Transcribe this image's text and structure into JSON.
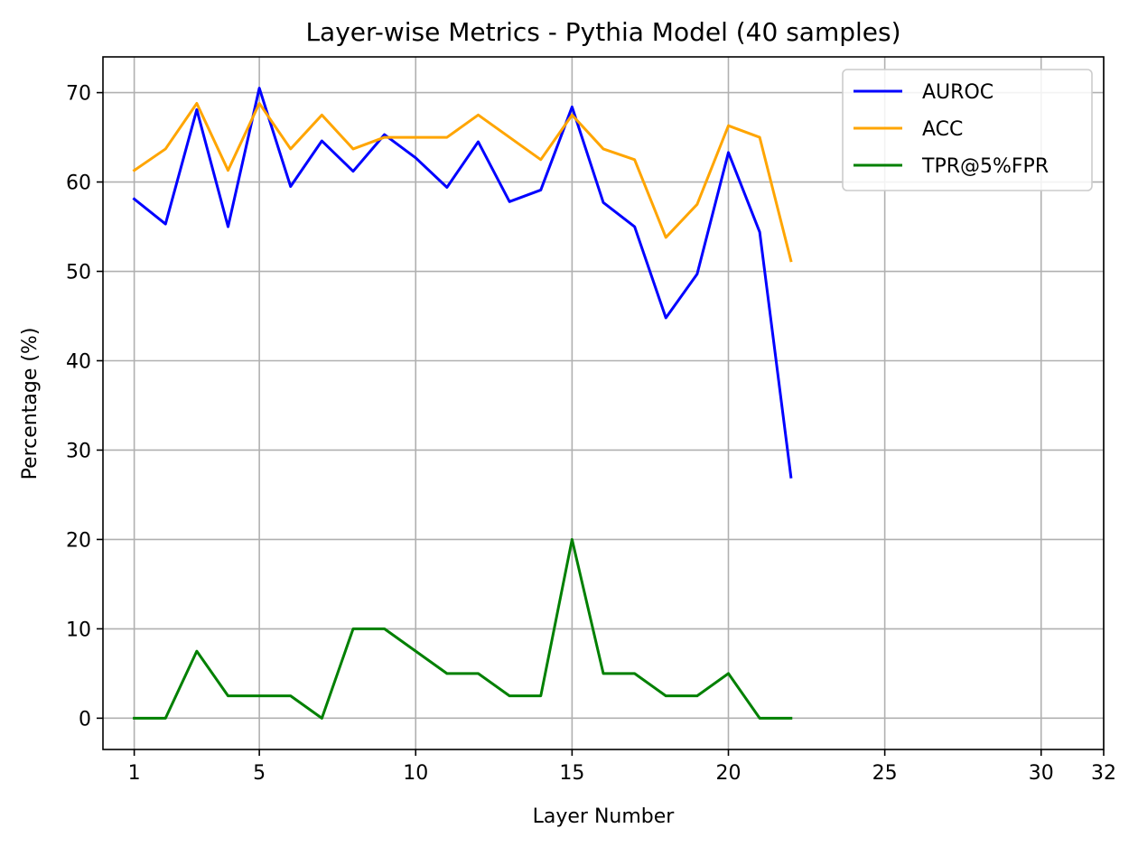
{
  "chart_data": {
    "type": "line",
    "title": "Layer-wise Metrics - Pythia Model (40 samples)",
    "xlabel": "Layer Number",
    "ylabel": "Percentage (%)",
    "xlim": [
      0,
      32
    ],
    "ylim": [
      -3.5,
      74
    ],
    "xticks": [
      1,
      5,
      10,
      15,
      20,
      25,
      30,
      32
    ],
    "yticks": [
      0,
      10,
      20,
      30,
      40,
      50,
      60,
      70
    ],
    "grid": true,
    "legend_position": "top-right",
    "x": [
      1,
      2,
      3,
      4,
      5,
      6,
      7,
      8,
      9,
      10,
      11,
      12,
      13,
      14,
      15,
      16,
      17,
      18,
      19,
      20,
      21,
      22
    ],
    "series": [
      {
        "name": "AUROC",
        "color": "#0000ff",
        "values": [
          58.1,
          55.3,
          68.1,
          55.0,
          70.5,
          59.5,
          64.6,
          61.2,
          65.3,
          62.7,
          59.4,
          64.5,
          57.8,
          59.1,
          68.4,
          57.7,
          55.0,
          44.8,
          49.7,
          63.3,
          54.4,
          27.0
        ]
      },
      {
        "name": "ACC",
        "color": "#ffa500",
        "values": [
          61.3,
          63.7,
          68.8,
          61.3,
          68.8,
          63.7,
          67.5,
          63.7,
          65.0,
          65.0,
          65.0,
          67.5,
          65.0,
          62.5,
          67.5,
          63.7,
          62.5,
          53.8,
          57.5,
          66.3,
          65.0,
          51.2
        ]
      },
      {
        "name": "TPR@5%FPR",
        "color": "#008000",
        "values": [
          0.0,
          0.0,
          7.5,
          2.5,
          2.5,
          2.5,
          0.0,
          10.0,
          10.0,
          7.5,
          5.0,
          5.0,
          2.5,
          2.5,
          20.0,
          5.0,
          5.0,
          2.5,
          2.5,
          5.0,
          0.0,
          0.0
        ]
      }
    ]
  }
}
